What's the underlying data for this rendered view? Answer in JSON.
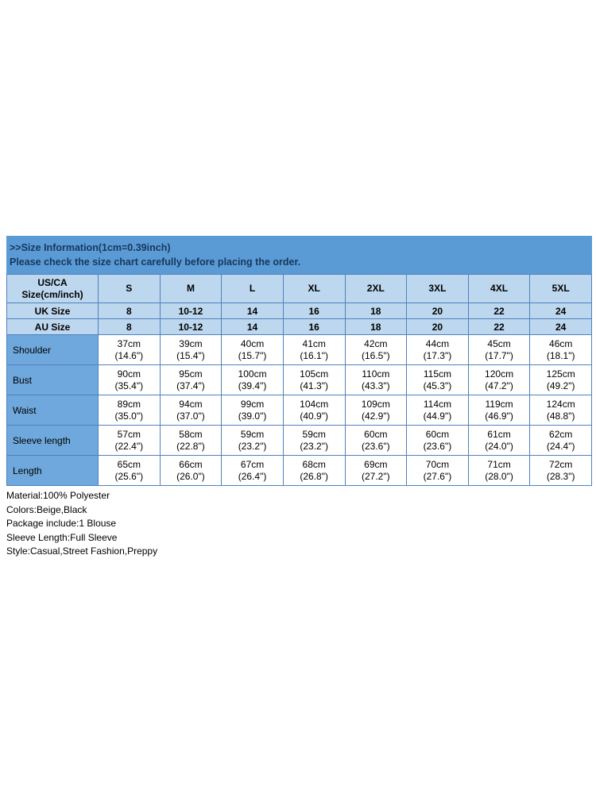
{
  "banner": {
    "line1": ">>Size Information(1cm=0.39inch)",
    "line2": "Please check the size chart carefully before placing the order."
  },
  "table": {
    "corner_label": "US/CA\nSize(cm/inch)",
    "size_columns": [
      "S",
      "M",
      "L",
      "XL",
      "2XL",
      "3XL",
      "4XL",
      "5XL"
    ],
    "size_rows": [
      {
        "label": "UK Size",
        "values": [
          "8",
          "10-12",
          "14",
          "16",
          "18",
          "20",
          "22",
          "24"
        ]
      },
      {
        "label": "AU Size",
        "values": [
          "8",
          "10-12",
          "14",
          "16",
          "18",
          "20",
          "22",
          "24"
        ]
      }
    ],
    "measurement_rows": [
      {
        "label": "Shoulder",
        "values": [
          "37cm\n(14.6\")",
          "39cm\n(15.4\")",
          "40cm\n(15.7\")",
          "41cm\n(16.1\")",
          "42cm\n(16.5\")",
          "44cm\n(17.3\")",
          "45cm\n(17.7\")",
          "46cm\n(18.1\")"
        ]
      },
      {
        "label": "Bust",
        "values": [
          "90cm\n(35.4\")",
          "95cm\n(37.4\")",
          "100cm\n(39.4\")",
          "105cm\n(41.3\")",
          "110cm\n(43.3\")",
          "115cm\n(45.3\")",
          "120cm\n(47.2\")",
          "125cm\n(49.2\")"
        ]
      },
      {
        "label": "Waist",
        "values": [
          "89cm\n(35.0\")",
          "94cm\n(37.0\")",
          "99cm\n(39.0\")",
          "104cm\n(40.9\")",
          "109cm\n(42.9\")",
          "114cm\n(44.9\")",
          "119cm\n(46.9\")",
          "124cm\n(48.8\")"
        ]
      },
      {
        "label": "Sleeve length",
        "values": [
          "57cm\n(22.4\")",
          "58cm\n(22.8\")",
          "59cm\n(23.2\")",
          "59cm\n(23.2\")",
          "60cm\n(23.6\")",
          "60cm\n(23.6\")",
          "61cm\n(24.0\")",
          "62cm\n(24.4\")"
        ]
      },
      {
        "label": "Length",
        "values": [
          "65cm\n(25.6\")",
          "66cm\n(26.0\")",
          "67cm\n(26.4\")",
          "68cm\n(26.8\")",
          "69cm\n(27.2\")",
          "70cm\n(27.6\")",
          "71cm\n(28.0\")",
          "72cm\n(28.3\")"
        ]
      }
    ]
  },
  "details": [
    "Material:100% Polyester",
    "Colors:Beige,Black",
    "Package include:1 Blouse",
    "Sleeve Length:Full Sleeve",
    "Style:Casual,Street Fashion,Preppy"
  ],
  "colors": {
    "banner_bg": "#5B9BD5",
    "banner_text": "#17375D",
    "header_bg": "#BDD7EE",
    "label_col_bg": "#6FA8DC",
    "border": "#4F81BD"
  }
}
